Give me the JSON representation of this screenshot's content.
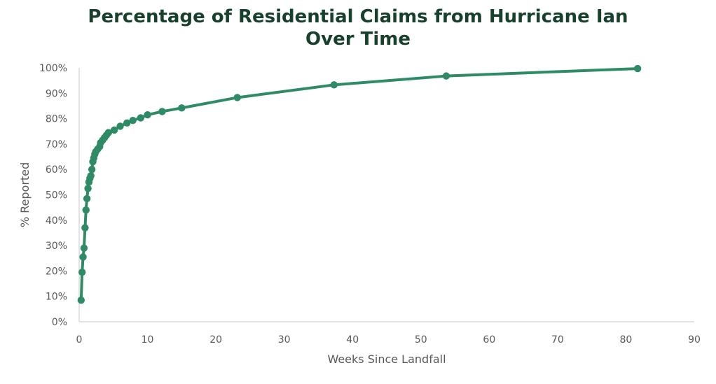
{
  "chart_data": {
    "type": "line",
    "title_line1": "Percentage of Residential Claims from Hurricane Ian",
    "title_line2": "Over Time",
    "xlabel": "Weeks Since Landfall",
    "ylabel": "% Reported",
    "xlim": [
      0,
      90
    ],
    "ylim": [
      0,
      100
    ],
    "x_ticks": [
      "0",
      "10",
      "20",
      "30",
      "40",
      "50",
      "60",
      "70",
      "80",
      "90"
    ],
    "y_ticks": [
      "0%",
      "10%",
      "20%",
      "30%",
      "40%",
      "50%",
      "60%",
      "70%",
      "80%",
      "90%",
      "100%"
    ],
    "grid": false,
    "legend": "none",
    "color": "#2e8b65",
    "series": [
      {
        "points": [
          [
            0.29,
            8.5
          ],
          [
            0.43,
            19.5
          ],
          [
            0.57,
            25.5
          ],
          [
            0.71,
            29.0
          ],
          [
            0.86,
            37.0
          ],
          [
            1.0,
            44.0
          ],
          [
            1.14,
            48.5
          ],
          [
            1.29,
            52.5
          ],
          [
            1.43,
            55.0
          ],
          [
            1.57,
            56.5
          ],
          [
            1.71,
            57.5
          ],
          [
            1.86,
            60.0
          ],
          [
            2.0,
            63.0
          ],
          [
            2.14,
            64.5
          ],
          [
            2.29,
            66.0
          ],
          [
            2.43,
            67.0
          ],
          [
            2.71,
            68.0
          ],
          [
            3.0,
            69.0
          ],
          [
            3.14,
            70.5
          ],
          [
            3.43,
            71.5
          ],
          [
            3.71,
            72.5
          ],
          [
            4.0,
            73.5
          ],
          [
            4.29,
            74.5
          ],
          [
            5.14,
            75.5
          ],
          [
            6.0,
            77.0
          ],
          [
            7.0,
            78.3
          ],
          [
            7.86,
            79.3
          ],
          [
            9.0,
            80.3
          ],
          [
            10.0,
            81.5
          ],
          [
            12.14,
            82.8
          ],
          [
            15.0,
            84.2
          ],
          [
            23.14,
            88.3
          ],
          [
            37.29,
            93.3
          ],
          [
            53.71,
            96.8
          ],
          [
            81.71,
            99.7
          ]
        ],
        "line_only_points": [
          [
            76.8,
            99.2
          ]
        ]
      }
    ]
  }
}
